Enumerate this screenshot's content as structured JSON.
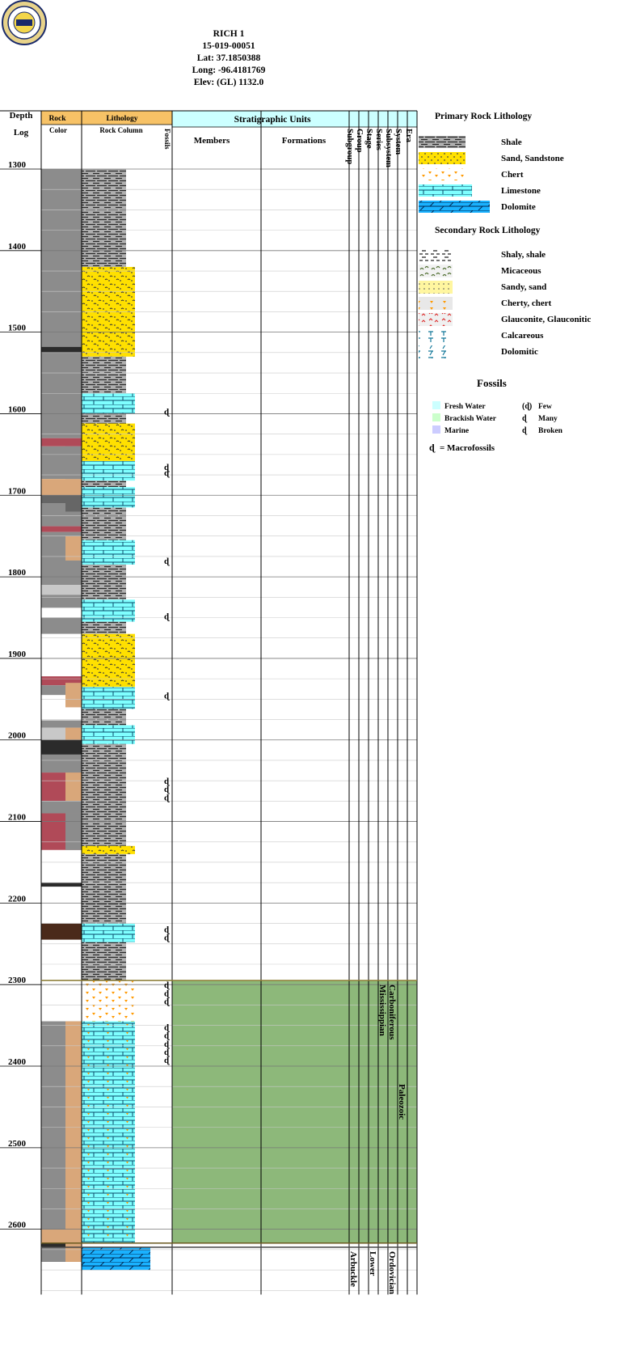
{
  "header": {
    "well_name": "RICH 1",
    "api": "15-019-00051",
    "lat": "Lat: 37.1850388",
    "long": "Long: -96.4181769",
    "elev": "Elev: (GL) 1132.0"
  },
  "logo": {
    "name": "Kansas Geological Survey seal",
    "icon": "kgs-seal-icon"
  },
  "columns": {
    "depth": "Depth",
    "log": "Log",
    "rock": "Rock",
    "color": "Color",
    "lithology": "Lithology",
    "rock_column": "Rock Column",
    "fossils": "Fossils",
    "strat_units": "Stratigraphic Units",
    "members": "Members",
    "formations": "Formations",
    "rotated": [
      "Subgroup",
      "Group",
      "Stage",
      "Series",
      "Subsystem",
      "System",
      "Era"
    ]
  },
  "colors": {
    "header_orange": "#f7c266",
    "header_cyan": "#ccffff",
    "shale_gray": "#a8a8a8",
    "sand_yellow": "#ffe000",
    "limestone_cyan": "#7fffff",
    "dolomite_blue": "#1ab2ff",
    "chert_orange": "#ff9900",
    "tan": "#d9a77a",
    "brown": "#b5785a",
    "dark_brown": "#4a2a1a",
    "red": "#b04a58",
    "gray": "#8c8c8c",
    "mid_gray": "#666666",
    "dark_gray": "#2b2b2b",
    "light_gray": "#c8c8c8",
    "strat_green": "#8db87a"
  },
  "depth_axis": {
    "min": 1277,
    "max": 2680,
    "ticks": [
      "1300",
      "1400",
      "1500",
      "1600",
      "1700",
      "1800",
      "1900",
      "2000",
      "2100",
      "2200",
      "2300",
      "2400",
      "2500",
      "2600"
    ]
  },
  "log": {
    "color_intervals": [
      {
        "top": 1277,
        "bottom": 1300,
        "color": "white"
      },
      {
        "top": 1300,
        "bottom": 1518,
        "color": "gray"
      },
      {
        "top": 1518,
        "bottom": 1525,
        "color": "dark_gray"
      },
      {
        "top": 1525,
        "bottom": 1630,
        "color": "gray"
      },
      {
        "top": 1630,
        "bottom": 1640,
        "color": "red"
      },
      {
        "top": 1640,
        "bottom": 1680,
        "color": "gray"
      },
      {
        "top": 1680,
        "bottom": 1700,
        "color": "tan"
      },
      {
        "top": 1700,
        "bottom": 1710,
        "color": "mid_gray"
      },
      {
        "top": 1710,
        "bottom": 1738,
        "color": "gray"
      },
      {
        "top": 1738,
        "bottom": 1745,
        "color": "red"
      },
      {
        "top": 1745,
        "bottom": 1810,
        "color": "gray"
      },
      {
        "top": 1810,
        "bottom": 1822,
        "color": "light_gray"
      },
      {
        "top": 1822,
        "bottom": 1838,
        "color": "gray"
      },
      {
        "top": 1838,
        "bottom": 1850,
        "color": "white"
      },
      {
        "top": 1850,
        "bottom": 1870,
        "color": "gray"
      },
      {
        "top": 1870,
        "bottom": 1922,
        "color": "white"
      },
      {
        "top": 1922,
        "bottom": 1933,
        "color": "red"
      },
      {
        "top": 1933,
        "bottom": 1945,
        "color": "gray"
      },
      {
        "top": 1945,
        "bottom": 1960,
        "color": "white"
      },
      {
        "top": 1960,
        "bottom": 1976,
        "color": "white"
      },
      {
        "top": 1976,
        "bottom": 1985,
        "color": "gray"
      },
      {
        "top": 1985,
        "bottom": 2000,
        "color": "light_gray"
      },
      {
        "top": 2000,
        "bottom": 2018,
        "color": "dark_gray"
      },
      {
        "top": 2018,
        "bottom": 2040,
        "color": "gray"
      },
      {
        "top": 2040,
        "bottom": 2075,
        "color": "red"
      },
      {
        "top": 2075,
        "bottom": 2090,
        "color": "gray"
      },
      {
        "top": 2090,
        "bottom": 2135,
        "color": "red"
      },
      {
        "top": 2135,
        "bottom": 2150,
        "color": "white"
      },
      {
        "top": 2150,
        "bottom": 2175,
        "color": "white"
      },
      {
        "top": 2175,
        "bottom": 2180,
        "color": "dark_gray"
      },
      {
        "top": 2180,
        "bottom": 2225,
        "color": "white"
      },
      {
        "top": 2225,
        "bottom": 2245,
        "color": "dark_brown"
      },
      {
        "top": 2245,
        "bottom": 2295,
        "color": "white"
      },
      {
        "top": 2295,
        "bottom": 2328,
        "color": "white"
      },
      {
        "top": 2328,
        "bottom": 2345,
        "color": "white"
      },
      {
        "top": 2345,
        "bottom": 2600,
        "color": "gray"
      },
      {
        "top": 2600,
        "bottom": 2617,
        "color": "tan"
      },
      {
        "top": 2617,
        "bottom": 2622,
        "color": "dark_gray"
      },
      {
        "top": 2622,
        "bottom": 2640,
        "color": "gray"
      }
    ],
    "secondary_intervals": [
      {
        "top": 1540,
        "bottom": 1560,
        "color": "gray"
      },
      {
        "top": 1640,
        "bottom": 1680,
        "color": "gray"
      },
      {
        "top": 1700,
        "bottom": 1720,
        "color": "mid_gray"
      },
      {
        "top": 1750,
        "bottom": 1780,
        "color": "tan"
      },
      {
        "top": 1930,
        "bottom": 1960,
        "color": "tan"
      },
      {
        "top": 1985,
        "bottom": 2000,
        "color": "tan"
      },
      {
        "top": 2040,
        "bottom": 2075,
        "color": "tan"
      },
      {
        "top": 2090,
        "bottom": 2135,
        "color": "gray"
      },
      {
        "top": 2345,
        "bottom": 2622,
        "color": "tan"
      },
      {
        "top": 2622,
        "bottom": 2640,
        "color": "tan"
      }
    ],
    "lithology_intervals": [
      {
        "top": 1300,
        "bottom": 1360,
        "lith": "shale"
      },
      {
        "top": 1360,
        "bottom": 1420,
        "lith": "shale"
      },
      {
        "top": 1420,
        "bottom": 1530,
        "lith": "sandstone"
      },
      {
        "top": 1530,
        "bottom": 1575,
        "lith": "shale"
      },
      {
        "top": 1575,
        "bottom": 1600,
        "lith": "limestone"
      },
      {
        "top": 1600,
        "bottom": 1612,
        "lith": "shale"
      },
      {
        "top": 1612,
        "bottom": 1658,
        "lith": "sandstone"
      },
      {
        "top": 1658,
        "bottom": 1682,
        "lith": "limestone"
      },
      {
        "top": 1682,
        "bottom": 1690,
        "lith": "shale"
      },
      {
        "top": 1690,
        "bottom": 1715,
        "lith": "limestone"
      },
      {
        "top": 1715,
        "bottom": 1755,
        "lith": "shale"
      },
      {
        "top": 1755,
        "bottom": 1785,
        "lith": "limestone"
      },
      {
        "top": 1785,
        "bottom": 1828,
        "lith": "shale"
      },
      {
        "top": 1828,
        "bottom": 1855,
        "lith": "limestone"
      },
      {
        "top": 1855,
        "bottom": 1870,
        "lith": "shale"
      },
      {
        "top": 1870,
        "bottom": 1935,
        "lith": "sandstone"
      },
      {
        "top": 1935,
        "bottom": 1962,
        "lith": "limestone"
      },
      {
        "top": 1962,
        "bottom": 1982,
        "lith": "shale"
      },
      {
        "top": 1982,
        "bottom": 2005,
        "lith": "limestone"
      },
      {
        "top": 2005,
        "bottom": 2130,
        "lith": "shale"
      },
      {
        "top": 2130,
        "bottom": 2140,
        "lith": "sandstone"
      },
      {
        "top": 2140,
        "bottom": 2225,
        "lith": "shale"
      },
      {
        "top": 2225,
        "bottom": 2248,
        "lith": "limestone"
      },
      {
        "top": 2248,
        "bottom": 2295,
        "lith": "shale"
      },
      {
        "top": 2295,
        "bottom": 2345,
        "lith": "chert"
      },
      {
        "top": 2345,
        "bottom": 2617,
        "lith": "limestone"
      },
      {
        "top": 2622,
        "bottom": 2650,
        "lith": "dolomite"
      }
    ],
    "fossil_depths": [
      1597,
      1665,
      1672,
      1780,
      1848,
      1945,
      2050,
      2060,
      2070,
      2232,
      2242,
      2300,
      2310,
      2320,
      2352,
      2362,
      2372,
      2382,
      2392
    ],
    "strat_green": {
      "top": 2295,
      "bottom": 2617
    }
  },
  "strat_labels": [
    {
      "text": "Carboniferous",
      "column": 5,
      "depth": 2298
    },
    {
      "text": "Mississippian",
      "column": 4,
      "depth": 2298
    },
    {
      "text": "Paleozoic",
      "column": 6,
      "depth": 2420
    },
    {
      "text": "Ordovician",
      "column": 5,
      "depth": 2625
    },
    {
      "text": "Lower",
      "column": 3,
      "depth": 2625
    },
    {
      "text": "Arbuckle",
      "column": 1,
      "depth": 2625
    }
  ],
  "legend": {
    "primary_title": "Primary Rock Lithology",
    "primary": [
      {
        "label": "Shale",
        "lith": "shale"
      },
      {
        "label": "Sand, Sandstone",
        "lith": "sandstone"
      },
      {
        "label": "Chert",
        "lith": "chert"
      },
      {
        "label": "Limestone",
        "lith": "limestone"
      },
      {
        "label": "Dolomite",
        "lith": "dolomite"
      }
    ],
    "secondary_title": "Secondary Rock Lithology",
    "secondary": [
      {
        "label": "Shaly, shale",
        "sym": "shaly"
      },
      {
        "label": "Micaceous",
        "sym": "mica"
      },
      {
        "label": "Sandy, sand",
        "sym": "sandy"
      },
      {
        "label": "Cherty, chert",
        "sym": "cherty"
      },
      {
        "label": "Glauconite, Glauconitic",
        "sym": "glauc"
      },
      {
        "label": "Calcareous",
        "sym": "calc"
      },
      {
        "label": "Dolomitic",
        "sym": "dolo"
      }
    ],
    "fossils_title": "Fossils",
    "fossil_env": [
      {
        "label": "Fresh Water",
        "color": "#ccffff"
      },
      {
        "label": "Brackish Water",
        "color": "#ccffcc"
      },
      {
        "label": "Marine",
        "color": "#ccccff"
      }
    ],
    "fossil_abundance": [
      {
        "label": "Few"
      },
      {
        "label": "Many"
      },
      {
        "label": "Broken"
      }
    ],
    "macro": "= Macrofossils"
  }
}
